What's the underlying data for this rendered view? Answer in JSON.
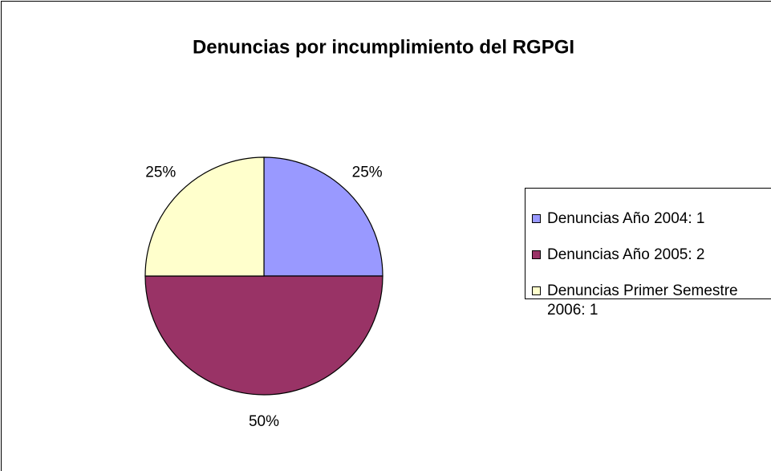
{
  "chart_data": {
    "type": "pie",
    "title": "Denuncias por incumplimiento del RGPGI",
    "categories": [
      "Denuncias Año 2004: 1",
      "Denuncias Año 2005: 2",
      "Denuncias Primer Semestre 2006: 1"
    ],
    "values": [
      25,
      50,
      25
    ],
    "value_labels": [
      "25%",
      "50%",
      "25%"
    ],
    "colors": [
      "#9999ff",
      "#993366",
      "#ffffcc"
    ],
    "legend": "right"
  }
}
